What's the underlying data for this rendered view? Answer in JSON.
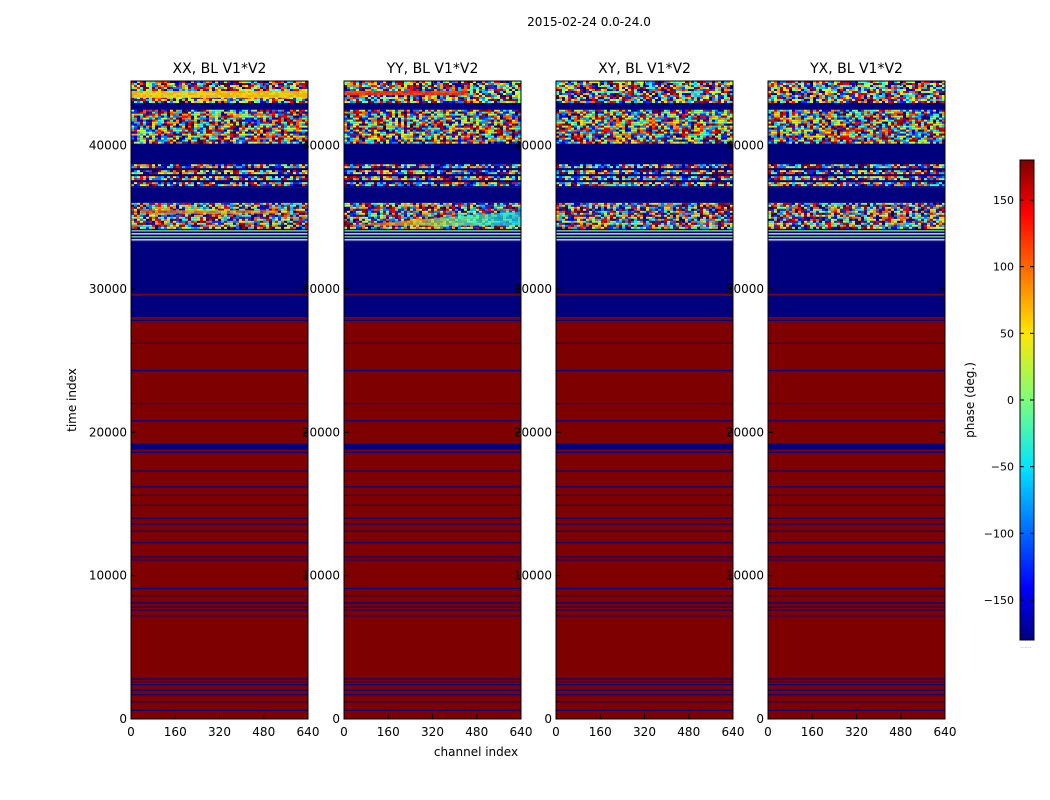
{
  "chart_data": {
    "type": "heatmap",
    "suptitle": "2015-02-24 0.0-24.0",
    "xlabel": "channel index",
    "ylabel": "time index",
    "xlim": [
      0,
      640
    ],
    "ylim": [
      0,
      44500
    ],
    "xticks": [
      0,
      160,
      320,
      480,
      640
    ],
    "xtick_labels": [
      "0",
      "160",
      "320",
      "480",
      "640"
    ],
    "yticks": [
      0,
      10000,
      20000,
      30000,
      40000
    ],
    "ytick_labels": [
      "0",
      "10000",
      "20000",
      "30000",
      "40000"
    ],
    "colorbar": {
      "label": "phase (deg.)",
      "range": [
        -180,
        180
      ],
      "ticks": [
        150,
        100,
        50,
        0,
        -50,
        -100,
        -150
      ],
      "tick_labels": [
        "150",
        "100",
        "50",
        "0",
        "−50",
        "−100",
        "−150"
      ],
      "colormap": "jet",
      "extra_label": "......"
    },
    "panels": [
      {
        "title": "XX, BL V1*V2",
        "noise_rows": [
          [
            34500,
            36000,
            "warm"
          ],
          [
            43200,
            44500,
            "mixed"
          ]
        ],
        "highlight": [
          [
            43300,
            43800,
            "yellow-red"
          ]
        ]
      },
      {
        "title": "YY, BL V1*V2",
        "noise_rows": [
          [
            34300,
            36000,
            "cool"
          ],
          [
            43200,
            44500,
            "mixed"
          ]
        ],
        "highlight": [
          [
            43500,
            43800,
            "red"
          ]
        ]
      },
      {
        "title": "XY, BL V1*V2",
        "noise_rows": [
          [
            34300,
            36000,
            "mixed"
          ],
          [
            43200,
            44500,
            "mixed"
          ]
        ],
        "highlight": []
      },
      {
        "title": "YX, BL V1*V2",
        "noise_rows": [
          [
            34300,
            36000,
            "mixed"
          ],
          [
            43200,
            44500,
            "mixed"
          ]
        ],
        "highlight": []
      }
    ],
    "bands": [
      {
        "from": 0,
        "to": 28000,
        "value": 180
      },
      {
        "from": 28000,
        "to": 33300,
        "value": -180
      },
      {
        "from": 33300,
        "to": 34300,
        "value": "striped"
      },
      {
        "from": 34300,
        "to": 36000,
        "value": "noise"
      },
      {
        "from": 36000,
        "to": 37100,
        "value": -180
      },
      {
        "from": 37100,
        "to": 38700,
        "value": "striped-noise"
      },
      {
        "from": 38700,
        "to": 40200,
        "value": -180
      },
      {
        "from": 40200,
        "to": 42500,
        "value": "noise"
      },
      {
        "from": 42500,
        "to": 43100,
        "value": -180
      },
      {
        "from": 43100,
        "to": 44500,
        "value": "noise"
      }
    ],
    "thin_lines_blue": [
      600,
      1200,
      1700,
      2000,
      2400,
      2600,
      2800,
      7200,
      7600,
      7800,
      8100,
      8600,
      9100,
      11100,
      11300,
      12300,
      13100,
      13600,
      14000,
      14900,
      15600,
      16200,
      17300,
      18600,
      20800,
      22000,
      24300,
      26200,
      27800
    ],
    "thick_lines_blue": [
      19000
    ],
    "thin_lines_red": [
      29600
    ]
  }
}
